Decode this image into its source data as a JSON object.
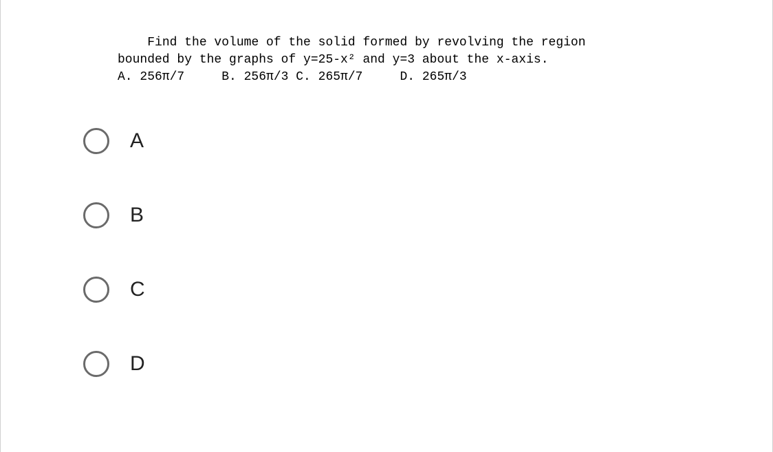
{
  "question": {
    "line1_indent": "    ",
    "line1_text": "Find the volume of the solid formed by revolving the region",
    "line2_text": "bounded by the graphs of y=25-x² and y=3 about the x-axis.",
    "answers_line": "A. 256π/7     B. 256π/3 C. 265π/7     D. 265π/3",
    "question_fontfamily": "Courier New",
    "question_fontsize": 18,
    "question_color": "#000000"
  },
  "options": [
    {
      "label": "A",
      "selected": false
    },
    {
      "label": "B",
      "selected": false
    },
    {
      "label": "C",
      "selected": false
    },
    {
      "label": "D",
      "selected": false
    }
  ],
  "styling": {
    "background_color": "#ffffff",
    "page_background": "#f0f0f0",
    "radio_border_color": "#6a6a6a",
    "radio_border_width": 3,
    "radio_diameter": 38,
    "option_fontsize": 30,
    "option_fontfamily": "Arial",
    "option_color": "#222222",
    "option_row_gap": 70
  }
}
